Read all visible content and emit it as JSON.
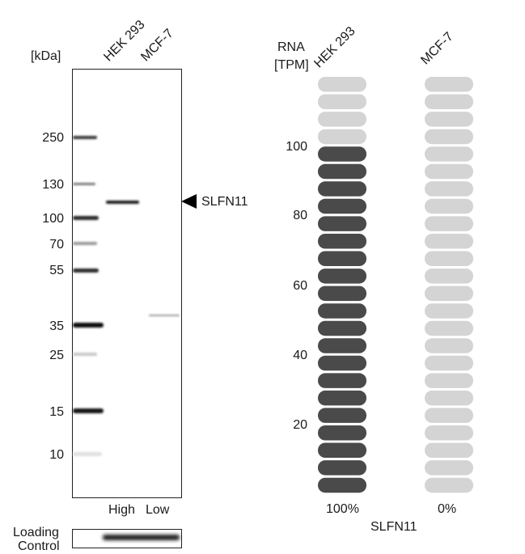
{
  "western_blot": {
    "unit_label": "[kDa]",
    "lanes": [
      "HEK 293",
      "MCF-7"
    ],
    "expression_labels": [
      "High",
      "Low"
    ],
    "ladder": [
      "250",
      "130",
      "100",
      "70",
      "55",
      "35",
      "25",
      "15",
      "10"
    ],
    "target_label": "SLFN11",
    "loading_control_line1": "Loading",
    "loading_control_line2": "Control"
  },
  "rna": {
    "header_line1": "RNA",
    "header_line2": "[TPM]",
    "columns": [
      {
        "label": "HEK 293",
        "percent_label": "100%",
        "level": 1.0
      },
      {
        "label": "MCF-7",
        "percent_label": "0%",
        "level": 0.0
      }
    ],
    "ticks": [
      "100",
      "80",
      "60",
      "40",
      "20"
    ],
    "gene_label": "SLFN11",
    "segments_total": 24,
    "segments_filled_hek": 20,
    "segments_filled_mcf": 0,
    "colors": {
      "filled": "#4a4a4a",
      "empty": "#d4d4d4"
    }
  }
}
